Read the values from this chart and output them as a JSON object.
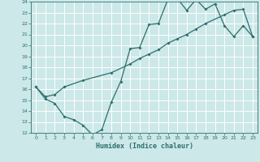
{
  "title": "",
  "xlabel": "Humidex (Indice chaleur)",
  "xlim_min": -0.5,
  "xlim_max": 23.5,
  "ylim_min": 12,
  "ylim_max": 24,
  "xticks": [
    0,
    1,
    2,
    3,
    4,
    5,
    6,
    7,
    8,
    9,
    10,
    11,
    12,
    13,
    14,
    15,
    16,
    17,
    18,
    19,
    20,
    21,
    22,
    23
  ],
  "yticks": [
    12,
    13,
    14,
    15,
    16,
    17,
    18,
    19,
    20,
    21,
    22,
    23,
    24
  ],
  "bg_color": "#cce8e8",
  "line_color": "#2e6e6e",
  "grid_color": "#ffffff",
  "curve1_x": [
    0,
    1,
    2,
    3,
    4,
    5,
    6,
    7,
    8,
    9,
    10,
    11,
    12,
    13,
    14,
    15,
    16,
    17,
    18,
    19,
    20,
    21,
    22,
    23
  ],
  "curve1_y": [
    16.2,
    15.1,
    14.7,
    13.5,
    13.2,
    12.7,
    11.8,
    12.3,
    14.8,
    16.7,
    19.7,
    19.8,
    21.9,
    22.0,
    24.2,
    24.3,
    23.2,
    24.2,
    23.3,
    23.8,
    21.8,
    20.8,
    21.8,
    20.8
  ],
  "curve2_x": [
    0,
    1,
    2,
    3,
    5,
    8,
    10,
    11,
    12,
    13,
    14,
    15,
    16,
    17,
    18,
    20,
    21,
    22,
    23
  ],
  "curve2_y": [
    16.2,
    15.3,
    15.5,
    16.2,
    16.8,
    17.5,
    18.3,
    18.8,
    19.2,
    19.6,
    20.2,
    20.6,
    21.0,
    21.5,
    22.0,
    22.8,
    23.2,
    23.3,
    20.8
  ]
}
